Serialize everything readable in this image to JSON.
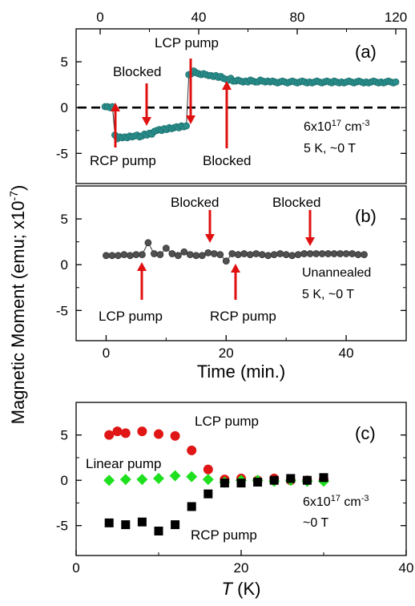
{
  "figure": {
    "ylabel": "Magnetic Moment (emu; x10",
    "ylabel_sup": "-7",
    "ylabel_end": ")",
    "colors": {
      "teal": "#2a8f8c",
      "dark": "#505050",
      "red": "#e01515",
      "green": "#1ee01e",
      "black": "#000000",
      "arrow": "#e01010"
    }
  },
  "chart_data": [
    {
      "panel": "(a)",
      "type": "line",
      "x_top_ticks": [
        "0",
        "40",
        "80",
        "120"
      ],
      "x_top_range": [
        0,
        120
      ],
      "ylim": [
        -8.3,
        8.6
      ],
      "yticks": [
        "5",
        "0",
        "-5"
      ],
      "reference_line": 0,
      "series": [
        {
          "x": [
            2,
            3,
            4,
            5,
            6,
            7,
            8,
            9,
            10,
            11,
            12,
            13,
            14,
            15,
            16,
            17,
            18,
            19,
            20,
            21,
            22,
            23,
            24,
            25,
            26,
            27,
            28,
            29,
            30,
            31,
            32,
            33,
            34,
            35,
            36,
            37,
            38,
            39,
            40,
            41,
            42,
            43,
            44,
            45,
            46,
            47,
            48,
            49,
            50,
            51,
            52,
            53,
            54,
            55,
            56,
            57,
            58,
            59,
            60,
            61,
            62,
            63,
            64,
            65,
            66,
            67,
            68,
            69,
            70,
            71,
            72,
            73,
            74,
            75,
            76,
            77,
            78,
            79,
            80,
            81,
            82,
            83,
            84,
            85,
            86,
            87,
            88,
            89,
            90,
            91,
            92,
            93,
            94,
            95,
            96,
            97,
            98,
            99,
            100,
            101,
            102,
            103,
            104,
            105,
            106,
            107,
            108,
            109,
            110,
            111,
            112,
            113,
            114,
            115,
            116,
            117,
            118,
            119,
            120
          ],
          "y": [
            0.1,
            0.1,
            0.0,
            0.1,
            -3.0,
            -3.4,
            -3.2,
            -3.3,
            -3.2,
            -3.3,
            -3.1,
            -3.2,
            -3.1,
            -3.0,
            -3.2,
            -3.1,
            -2.9,
            -3.0,
            -2.8,
            -2.9,
            -2.6,
            -2.5,
            -2.4,
            -2.5,
            -2.3,
            -2.4,
            -2.2,
            -2.3,
            -2.2,
            -2.1,
            -2.2,
            -2.0,
            -2.1,
            -2.0,
            3.6,
            3.7,
            4.0,
            3.8,
            3.7,
            3.6,
            3.7,
            3.6,
            3.5,
            3.5,
            3.4,
            3.5,
            3.3,
            3.4,
            3.2,
            3.1,
            3.0,
            3.2,
            2.9,
            2.9,
            3.0,
            2.9,
            2.8,
            2.9,
            2.8,
            3.0,
            2.9,
            2.8,
            2.8,
            3.0,
            2.9,
            2.8,
            2.9,
            2.8,
            2.9,
            2.8,
            2.7,
            2.8,
            2.9,
            2.8,
            2.7,
            2.8,
            2.9,
            2.8,
            2.7,
            2.8,
            2.9,
            2.8,
            2.7,
            2.8,
            2.7,
            2.8,
            2.9,
            2.8,
            2.7,
            2.8,
            2.9,
            2.8,
            2.7,
            2.9,
            2.8,
            2.7,
            2.8,
            2.7,
            2.8,
            2.9,
            2.8,
            2.7,
            2.8,
            2.9,
            2.8,
            2.7,
            2.8,
            2.7,
            2.8,
            2.9,
            2.8,
            2.7,
            2.8,
            2.7,
            2.8,
            2.9,
            2.8,
            2.7,
            2.8
          ]
        }
      ],
      "annotations": {
        "label": "(a)",
        "lcp": "LCP pump",
        "blocked1": "Blocked",
        "rcp": "RCP pump",
        "blocked2": "Blocked",
        "conc_base": "6x10",
        "conc_sup": "17",
        "conc_unit": " cm",
        "conc_unit_sup": "-3",
        "cond": "5 K, ~0 T"
      }
    },
    {
      "panel": "(b)",
      "type": "line",
      "xlabel": "Time (min.)",
      "x_range": [
        -5,
        50
      ],
      "xticks": [
        "0",
        "20",
        "40"
      ],
      "ylim": [
        -8.3,
        8.6
      ],
      "yticks": [
        "5",
        "0",
        "-5"
      ],
      "series": [
        {
          "x": [
            0,
            1,
            2,
            3,
            4,
            5,
            6,
            7,
            8,
            9,
            10,
            11,
            12,
            13,
            14,
            15,
            16,
            17,
            18,
            19,
            20,
            21,
            22,
            23,
            24,
            25,
            26,
            27,
            28,
            29,
            30,
            31,
            32,
            33,
            34,
            35,
            36,
            37,
            38,
            39,
            40,
            41,
            42,
            43
          ],
          "y": [
            1.0,
            1.0,
            1.0,
            1.1,
            1.0,
            1.1,
            1.1,
            2.4,
            1.2,
            1.1,
            1.8,
            1.2,
            1.0,
            1.4,
            1.1,
            1.0,
            1.0,
            1.3,
            1.2,
            1.1,
            0.4,
            1.2,
            1.1,
            1.2,
            1.1,
            1.2,
            1.1,
            1.0,
            1.1,
            1.2,
            1.1,
            1.0,
            1.1,
            1.2,
            1.2,
            1.2,
            1.2,
            1.2,
            1.2,
            1.2,
            1.2,
            1.2,
            1.1,
            1.1
          ]
        }
      ],
      "annotations": {
        "label": "(b)",
        "blocked1": "Blocked",
        "blocked2": "Blocked",
        "lcp": "LCP pump",
        "rcp": "RCP pump",
        "unann": "Unannealed",
        "cond": "5 K, ~0 T"
      }
    },
    {
      "panel": "(c)",
      "type": "scatter",
      "xlabel_italic": "T",
      "xlabel_rest": " (K)",
      "x_range": [
        0,
        40
      ],
      "xticks": [
        "0",
        "20",
        "40"
      ],
      "ylim": [
        -8.3,
        8.6
      ],
      "yticks": [
        "5",
        "0",
        "-5"
      ],
      "series": [
        {
          "name": "LCP pump",
          "x": [
            4,
            5,
            6,
            8,
            10,
            12,
            14,
            16,
            18,
            20,
            22,
            24,
            26,
            28,
            30
          ],
          "y": [
            5.0,
            5.4,
            5.2,
            5.4,
            5.1,
            4.9,
            3.3,
            1.2,
            0.1,
            0.2,
            0.0,
            0.2,
            0.0,
            0.0,
            0.1
          ]
        },
        {
          "name": "Linear pump",
          "x": [
            4,
            6,
            8,
            10,
            12,
            14,
            16,
            18,
            20,
            22,
            24,
            26,
            28,
            30
          ],
          "y": [
            0.0,
            0.1,
            0.1,
            0.2,
            0.5,
            0.4,
            0.1,
            -0.2,
            0.0,
            0.0,
            -0.1,
            0.0,
            -0.1,
            -0.1
          ]
        },
        {
          "name": "RCP pump",
          "x": [
            4,
            6,
            8,
            10,
            12,
            14,
            16,
            18,
            20,
            22,
            24,
            26,
            28,
            30
          ],
          "y": [
            -4.7,
            -4.9,
            -4.6,
            -5.6,
            -4.9,
            -2.9,
            -1.5,
            -0.3,
            -0.3,
            -0.2,
            0.0,
            0.2,
            0.0,
            0.3
          ]
        }
      ],
      "annotations": {
        "label": "(c)",
        "conc_base": "6x10",
        "conc_sup": "17",
        "conc_unit": " cm",
        "conc_unit_sup": "-3",
        "field": "~0 T"
      }
    }
  ]
}
